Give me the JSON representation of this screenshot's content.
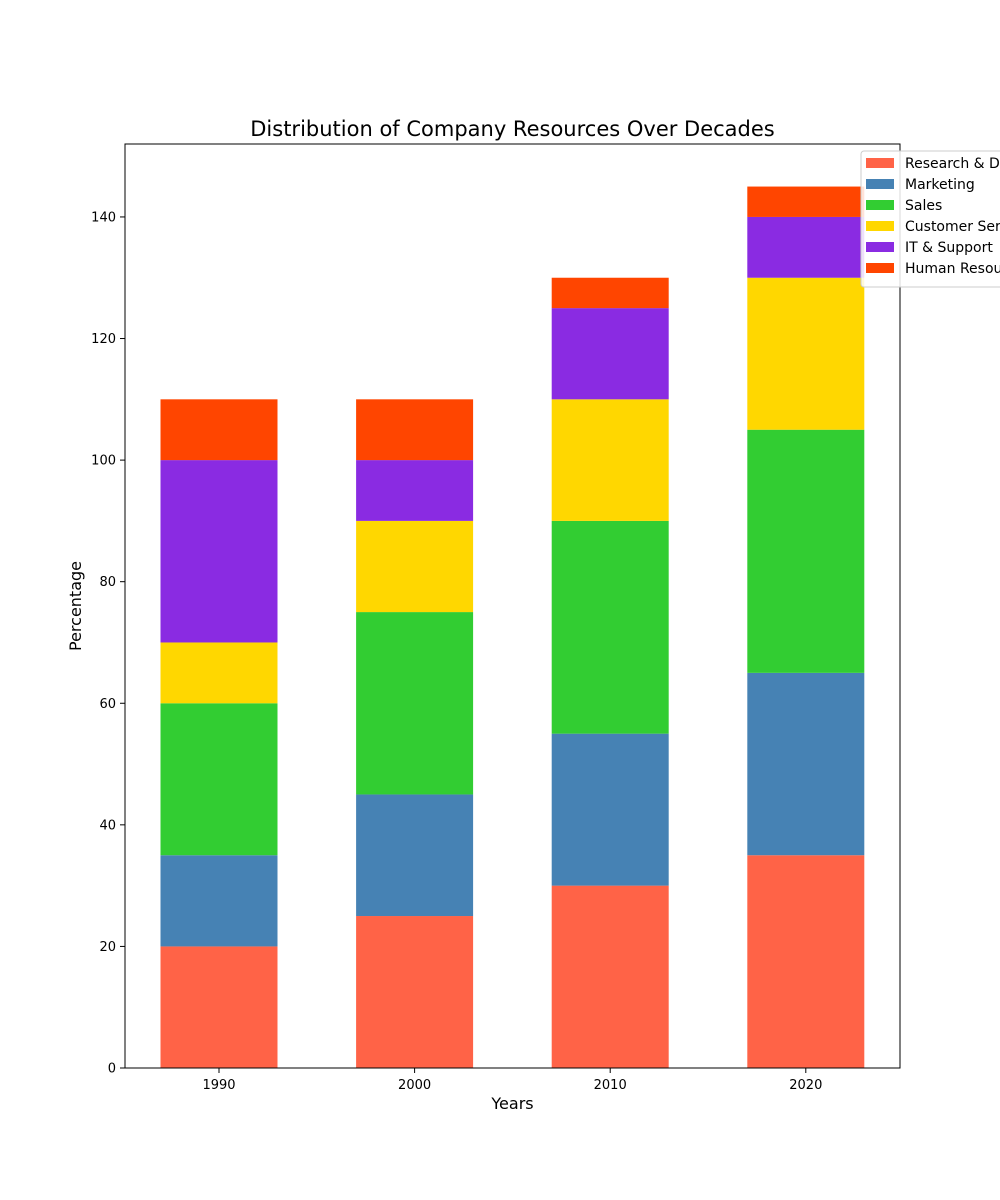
{
  "chart_data": {
    "type": "bar",
    "stacked": true,
    "title": "Distribution of Company Resources Over Decades",
    "xlabel": "Years",
    "ylabel": "Percentage",
    "categories": [
      "1990",
      "2000",
      "2010",
      "2020"
    ],
    "ylim": [
      0,
      152
    ],
    "yticks": [
      0,
      20,
      40,
      60,
      80,
      100,
      120,
      140
    ],
    "grid": false,
    "legend_position": "top-right",
    "series": [
      {
        "name": "Research & Development",
        "color": "#FF6347",
        "values": [
          20,
          25,
          30,
          35
        ]
      },
      {
        "name": "Marketing",
        "color": "#4682B4",
        "values": [
          15,
          20,
          25,
          30
        ]
      },
      {
        "name": "Sales",
        "color": "#32CD32",
        "values": [
          25,
          30,
          35,
          40
        ]
      },
      {
        "name": "Customer Service",
        "color": "#FFD700",
        "values": [
          10,
          15,
          20,
          25
        ]
      },
      {
        "name": "IT & Support",
        "color": "#8A2BE2",
        "values": [
          30,
          10,
          15,
          10
        ]
      },
      {
        "name": "Human Resources",
        "color": "#FF4500",
        "values": [
          10,
          10,
          5,
          5
        ]
      }
    ]
  }
}
